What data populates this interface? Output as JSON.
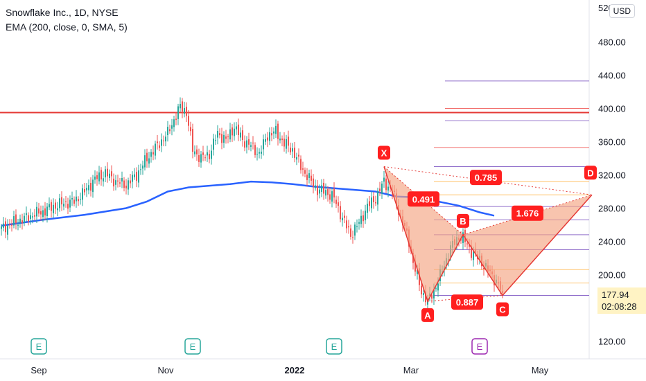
{
  "header": {
    "title": "Snowflake Inc., 1D, NYSE",
    "indicator": "EMA (200, close, 0, SMA, 5)"
  },
  "currency_button": "USD",
  "last_price": {
    "value": "177.94",
    "countdown": "02:08:28",
    "background": "#fff3c4"
  },
  "colors": {
    "up": "#26a69a",
    "down": "#ef5350",
    "ema": "#2962ff",
    "resistance": "#e53935",
    "harmonic_fill": "#f4a582",
    "harmonic_line": "#e53935",
    "label_bg": "#ff1f1f",
    "earnings_past": "#26a69a",
    "earnings_future": "#9c27b0",
    "fib_purple": "#7e57c2",
    "fib_red": "#ef5350",
    "fib_orange": "#ffb74d",
    "fib_gray": "#787b86"
  },
  "chart_data": {
    "type": "candlestick",
    "symbol": "Snowflake Inc.",
    "interval": "1D",
    "exchange": "NYSE",
    "y_axis": {
      "range": [
        105,
        525
      ],
      "ticks": [
        120,
        200,
        240,
        280,
        320,
        360,
        400,
        440,
        480
      ],
      "tick_labels": [
        "120.00",
        "200.00",
        "240.00",
        "280.00",
        "320.00",
        "360.00",
        "400.00",
        "440.00",
        "480.00"
      ],
      "top_partial_label": "520.00"
    },
    "x_axis": {
      "ticks": [
        "Sep",
        "Nov",
        "2022",
        "Mar",
        "May"
      ],
      "tick_days": [
        18,
        79,
        141,
        197,
        259
      ]
    },
    "candles_approx": [
      [
        0,
        255
      ],
      [
        5,
        262
      ],
      [
        10,
        266
      ],
      [
        15,
        272
      ],
      [
        20,
        276
      ],
      [
        25,
        282
      ],
      [
        30,
        286
      ],
      [
        35,
        288
      ],
      [
        40,
        300
      ],
      [
        45,
        315
      ],
      [
        50,
        322
      ],
      [
        55,
        312
      ],
      [
        60,
        308
      ],
      [
        65,
        320
      ],
      [
        70,
        340
      ],
      [
        75,
        355
      ],
      [
        80,
        370
      ],
      [
        84,
        392
      ],
      [
        86,
        402
      ],
      [
        89,
        396
      ],
      [
        92,
        350
      ],
      [
        96,
        340
      ],
      [
        100,
        345
      ],
      [
        104,
        370
      ],
      [
        108,
        362
      ],
      [
        112,
        378
      ],
      [
        116,
        362
      ],
      [
        120,
        355
      ],
      [
        124,
        345
      ],
      [
        128,
        368
      ],
      [
        132,
        372
      ],
      [
        136,
        358
      ],
      [
        140,
        350
      ],
      [
        144,
        330
      ],
      [
        148,
        315
      ],
      [
        152,
        302
      ],
      [
        156,
        300
      ],
      [
        160,
        292
      ],
      [
        164,
        268
      ],
      [
        168,
        248
      ],
      [
        172,
        262
      ],
      [
        176,
        282
      ],
      [
        180,
        292
      ],
      [
        184,
        312
      ],
      [
        188,
        300
      ],
      [
        192,
        270
      ],
      [
        196,
        240
      ],
      [
        198,
        215
      ],
      [
        202,
        180
      ],
      [
        205,
        168
      ],
      [
        208,
        180
      ],
      [
        212,
        205
      ],
      [
        216,
        232
      ],
      [
        220,
        246
      ],
      [
        222,
        244
      ],
      [
        226,
        228
      ],
      [
        230,
        218
      ],
      [
        234,
        205
      ],
      [
        238,
        192
      ],
      [
        241,
        178
      ]
    ],
    "ema": {
      "label": "EMA (200, close, 0, SMA, 5)",
      "points": [
        [
          0,
          259
        ],
        [
          20,
          266
        ],
        [
          40,
          272
        ],
        [
          60,
          280
        ],
        [
          70,
          288
        ],
        [
          80,
          300
        ],
        [
          90,
          305
        ],
        [
          100,
          307
        ],
        [
          110,
          309
        ],
        [
          120,
          312
        ],
        [
          130,
          311
        ],
        [
          140,
          309
        ],
        [
          150,
          306
        ],
        [
          160,
          304
        ],
        [
          170,
          302
        ],
        [
          180,
          300
        ],
        [
          190,
          294
        ],
        [
          200,
          293
        ],
        [
          210,
          288
        ],
        [
          220,
          283
        ],
        [
          230,
          275
        ],
        [
          237,
          271
        ]
      ]
    },
    "resistance_level": 395,
    "harmonic_pattern": {
      "type": "shark",
      "points": [
        {
          "name": "X",
          "day": 184,
          "price": 330
        },
        {
          "name": "A",
          "day": 205,
          "price": 168
        },
        {
          "name": "B",
          "day": 222,
          "price": 248
        },
        {
          "name": "C",
          "day": 241,
          "price": 175
        },
        {
          "name": "D",
          "day": 284,
          "price": 296
        }
      ],
      "ratios": [
        {
          "value": "0.491",
          "day": 203,
          "price": 291
        },
        {
          "value": "0.887",
          "day": 224,
          "price": 167
        },
        {
          "value": "1.676",
          "day": 253,
          "price": 274
        },
        {
          "value": "0.785",
          "day": 233,
          "price": 317
        }
      ]
    },
    "fib_levels": [
      433,
      400,
      385,
      353,
      330,
      312,
      296,
      282,
      266,
      248,
      230,
      206,
      190,
      175
    ],
    "earnings_markers": [
      {
        "label": "E",
        "day": 18,
        "kind": "past"
      },
      {
        "label": "E",
        "day": 92,
        "kind": "past"
      },
      {
        "label": "E",
        "day": 160,
        "kind": "past"
      },
      {
        "label": "E",
        "day": 230,
        "kind": "future"
      }
    ]
  }
}
